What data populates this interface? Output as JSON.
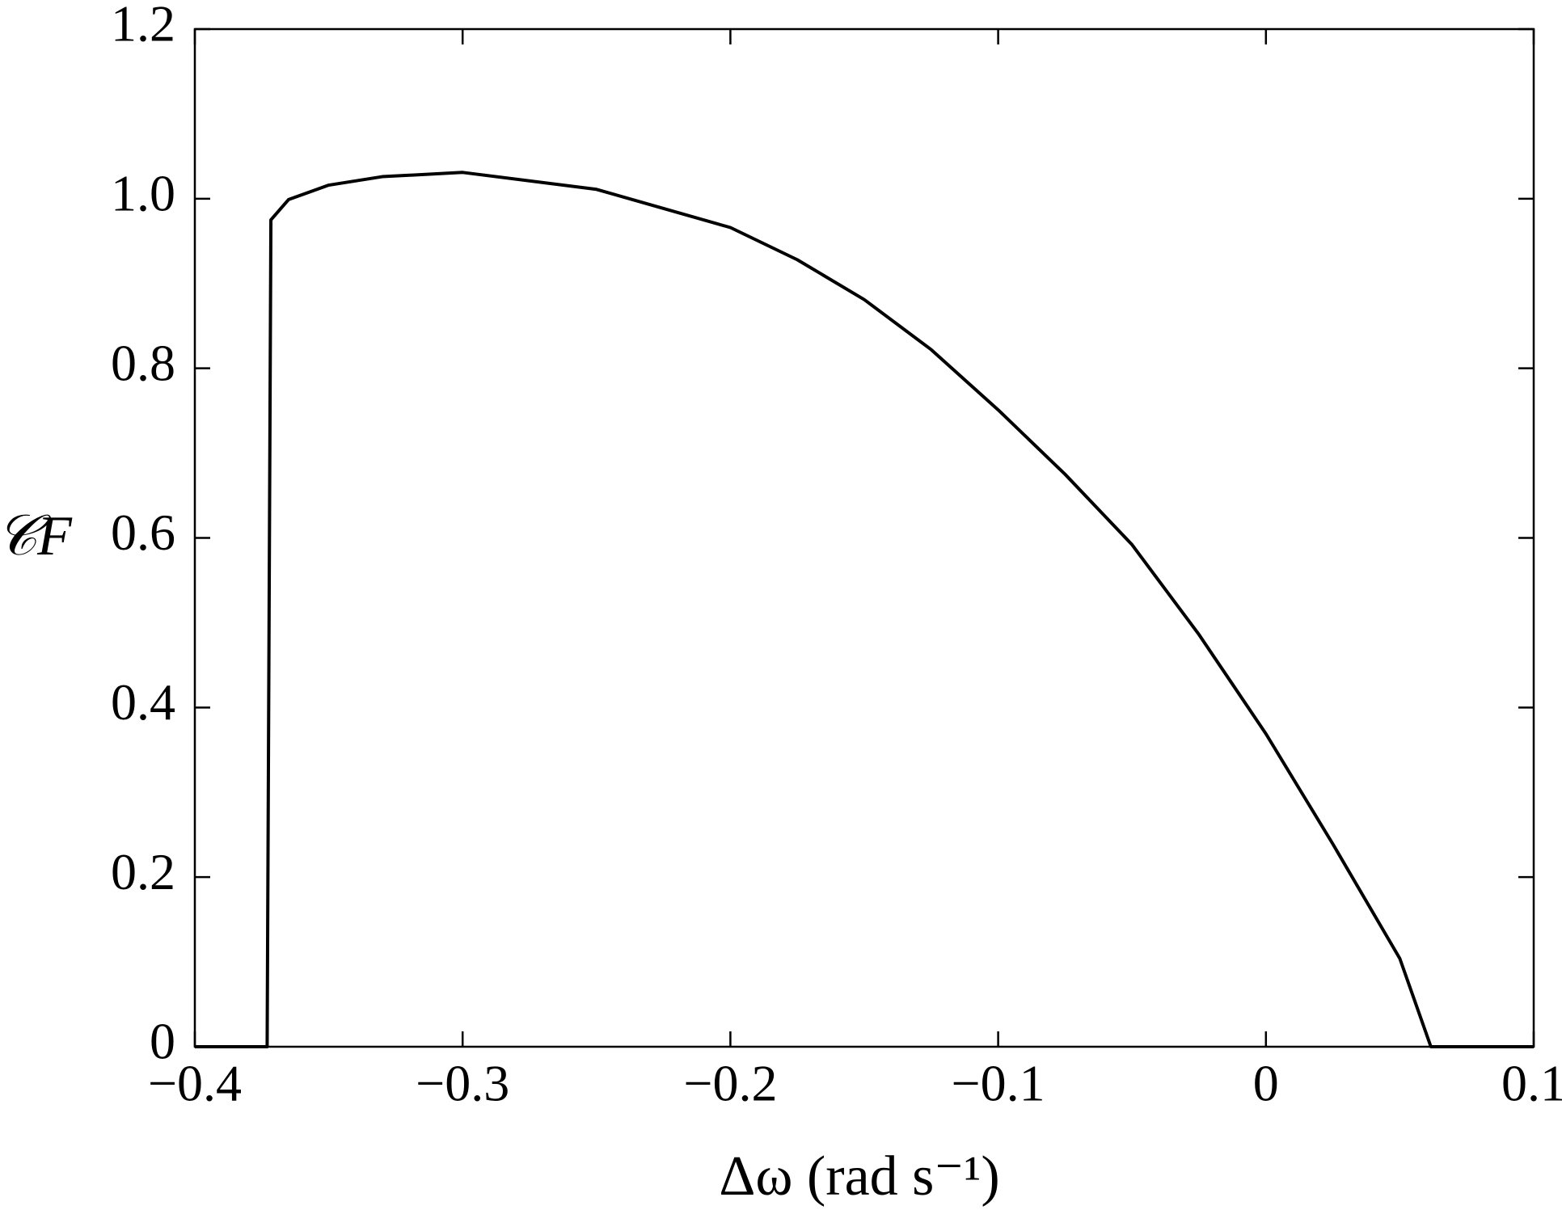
{
  "chart_data": {
    "type": "line",
    "xlabel": "Δω (rad s⁻¹)",
    "ylabel": "𝒞F",
    "x": [
      -0.4,
      -0.373,
      -0.3716,
      -0.365,
      -0.35,
      -0.33,
      -0.3,
      -0.25,
      -0.2,
      -0.175,
      -0.15,
      -0.125,
      -0.1,
      -0.075,
      -0.05,
      -0.025,
      0,
      0.025,
      0.05,
      0.0616,
      0.1
    ],
    "series": [
      {
        "color": "#000000",
        "values": [
          0,
          0,
          0.975,
          0.999,
          1.016,
          1.026,
          1.031,
          1.011,
          0.966,
          0.928,
          0.881,
          0.822,
          0.751,
          0.675,
          0.592,
          0.486,
          0.369,
          0.239,
          0.104,
          0,
          0
        ]
      }
    ],
    "xlim": [
      -0.4,
      0.1
    ],
    "ylim": [
      0,
      1.2
    ],
    "xticks": [
      {
        "value": -0.4,
        "label": "−0.4"
      },
      {
        "value": -0.3,
        "label": "−0.3"
      },
      {
        "value": -0.2,
        "label": "−0.2"
      },
      {
        "value": -0.1,
        "label": "−0.1"
      },
      0,
      0.1
    ],
    "yticks": [
      0,
      0.2,
      0.4,
      0.6,
      0.8,
      {
        "value": 1,
        "label": "1.0"
      },
      1.2
    ],
    "grid": false
  }
}
